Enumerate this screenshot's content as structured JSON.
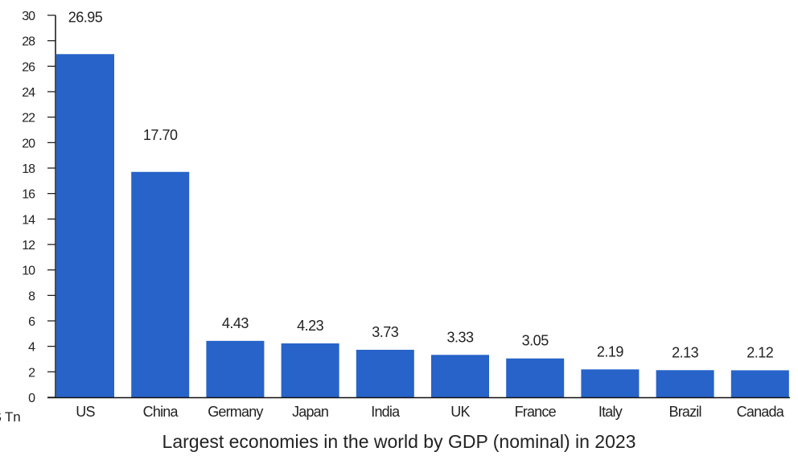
{
  "chart_data": {
    "type": "bar",
    "title": "Largest economies in the world by GDP (nominal) in 2023",
    "xlabel": "",
    "ylabel": "$ Tn",
    "categories": [
      "US",
      "China",
      "Germany",
      "Japan",
      "India",
      "UK",
      "France",
      "Italy",
      "Brazil",
      "Canada"
    ],
    "values": [
      26.95,
      17.7,
      4.43,
      4.23,
      3.73,
      3.33,
      3.05,
      2.19,
      2.13,
      2.12
    ],
    "data_labels": [
      "26.95",
      "17.70",
      "4.43",
      "4.23",
      "3.73",
      "3.33",
      "3.05",
      "2.19",
      "2.13",
      "2.12"
    ],
    "ylim": [
      0,
      30
    ],
    "yticks": [
      0,
      2,
      4,
      6,
      8,
      10,
      12,
      14,
      16,
      18,
      20,
      22,
      24,
      26,
      28,
      30
    ],
    "grid": false,
    "legend": "none",
    "bar_color": "#2763c8",
    "axis_color": "#111111"
  }
}
